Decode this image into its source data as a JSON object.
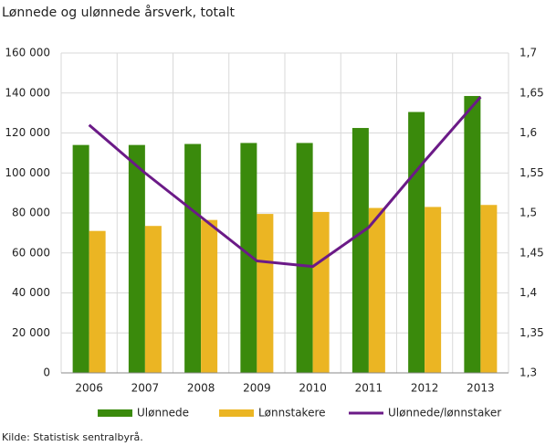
{
  "chart_data": {
    "type": "bar_line",
    "title": "Lønnede og ulønnede  årsverk, totalt",
    "source": "Kilde: Statistisk sentralbyrå.",
    "categories": [
      "2006",
      "2007",
      "2008",
      "2009",
      "2010",
      "2011",
      "2012",
      "2013"
    ],
    "series": [
      {
        "name": "Ulønnede",
        "color": "#3a8a0c",
        "type": "bar",
        "values": [
          114000,
          114000,
          114500,
          115000,
          115000,
          122500,
          130500,
          138500
        ]
      },
      {
        "name": "Lønnstakere",
        "color": "#ebb523",
        "type": "bar",
        "values": [
          71000,
          73500,
          76500,
          79500,
          80500,
          82500,
          83000,
          84000
        ]
      },
      {
        "name": "Ulønnede/lønnstaker",
        "color": "#6b1a87",
        "type": "line",
        "axis": "y2",
        "values": [
          1.61,
          1.55,
          1.495,
          1.44,
          1.433,
          1.482,
          1.565,
          1.645
        ]
      }
    ],
    "ylim": [
      0,
      160000
    ],
    "yticks": [
      0,
      {
        "value": 20000,
        "label": "20 000"
      },
      {
        "value": 40000,
        "label": "40 000"
      },
      {
        "value": 60000,
        "label": "60 000"
      },
      {
        "value": 80000,
        "label": "80 000"
      },
      {
        "value": 100000,
        "label": "100 000"
      },
      {
        "value": 120000,
        "label": "120 000"
      },
      {
        "value": 140000,
        "label": "140 000"
      },
      {
        "value": 160000,
        "label": "160 000"
      }
    ],
    "y2lim": [
      1.3,
      1.7
    ],
    "y2ticks": [
      {
        "value": 1.3,
        "label": "1,3"
      },
      {
        "value": 1.35,
        "label": "1,35"
      },
      {
        "value": 1.4,
        "label": "1,4"
      },
      {
        "value": 1.45,
        "label": "1,45"
      },
      {
        "value": 1.5,
        "label": "1,5"
      },
      {
        "value": 1.55,
        "label": "1,55"
      },
      {
        "value": 1.6,
        "label": "1,6"
      },
      {
        "value": 1.65,
        "label": "1,65"
      },
      {
        "value": 1.7,
        "label": "1,7"
      }
    ],
    "grid": true,
    "legend": "bottom"
  }
}
